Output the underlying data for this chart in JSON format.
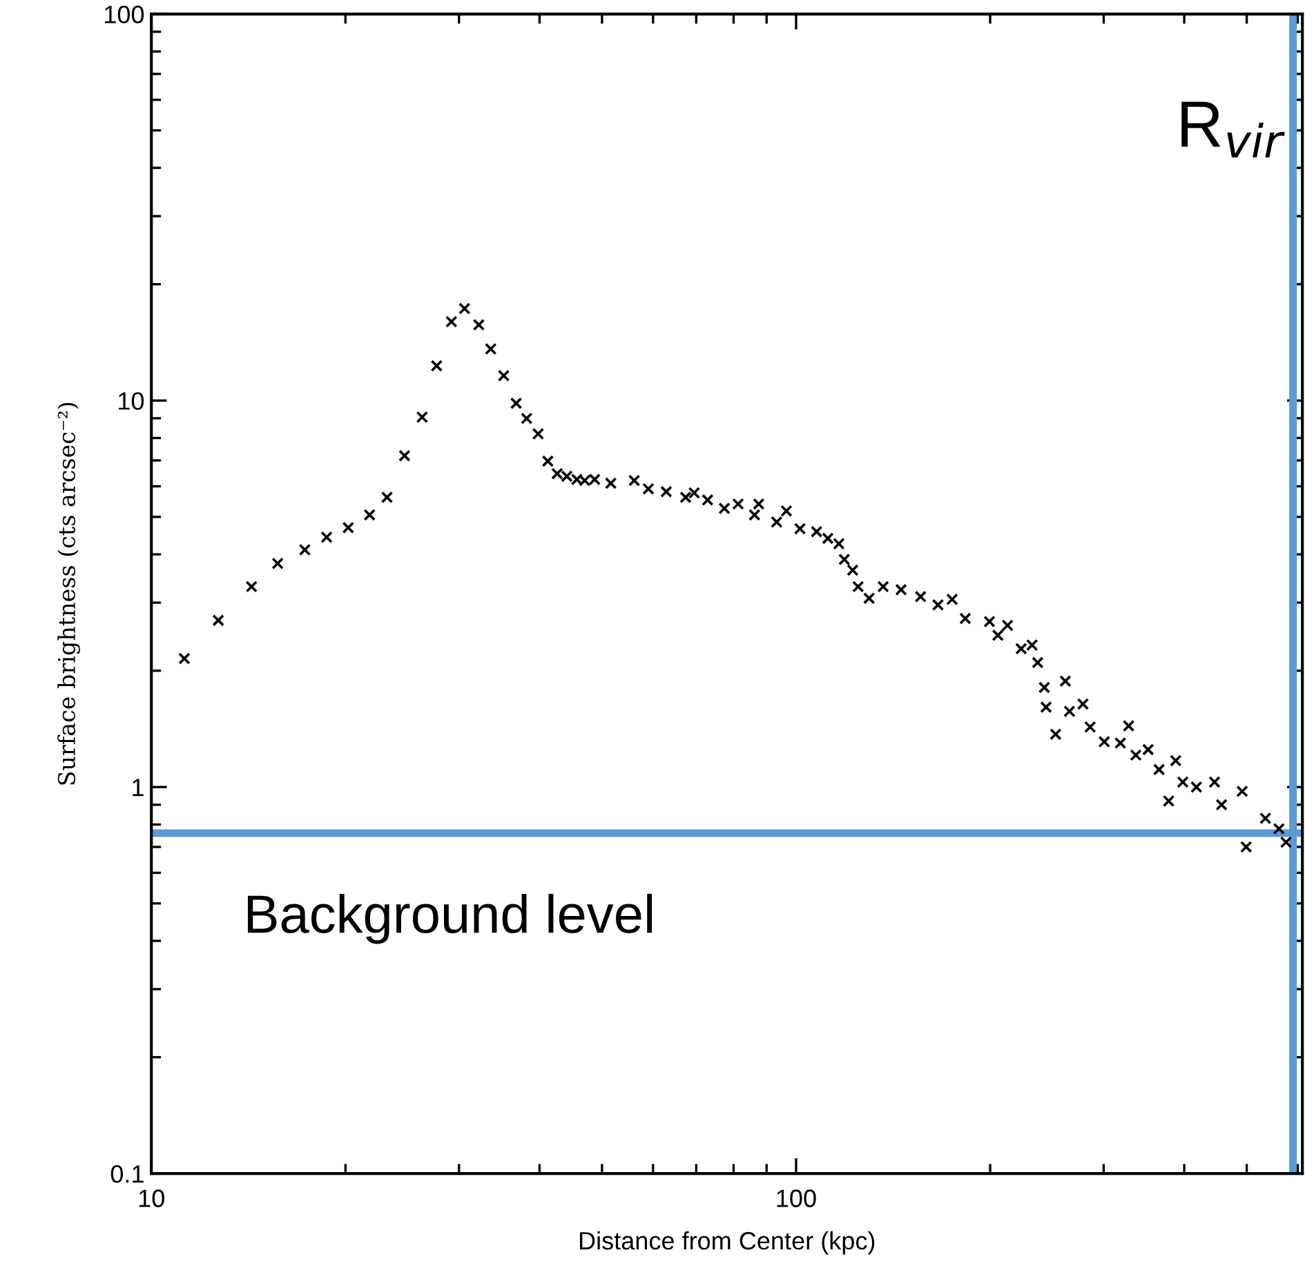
{
  "chart_data": {
    "type": "scatter",
    "xlabel": "Distance from Center (kpc)",
    "ylabel": "Surface brightness (cts arcsec⁻²)",
    "log": "xy",
    "xlim": [
      10,
      610
    ],
    "ylim": [
      0.1,
      100
    ],
    "xticks": [
      10,
      100
    ],
    "yticks": [
      0.1,
      1,
      10,
      100
    ],
    "marker": "cross",
    "grid": false,
    "legend": false,
    "series": [
      {
        "color": "#000000",
        "x": [
          11.25,
          12.7,
          14.3,
          15.7,
          17.3,
          18.7,
          20.2,
          21.8,
          23.2,
          24.7,
          26.3,
          27.7,
          29.2,
          30.6,
          32.2,
          33.6,
          35.2,
          36.8,
          38.2,
          39.8,
          41.2,
          42.6,
          44.1,
          45.7,
          47.0,
          48.7,
          51.6,
          56.1,
          59.0,
          62.9,
          67.4,
          69.5,
          72.9,
          77.4,
          81.3,
          86.2,
          87.5,
          93.3,
          96.6,
          101.4,
          107.6,
          112,
          116.5,
          118.8,
          122.4,
          124.8,
          129.8,
          136.5,
          145.5,
          156,
          166,
          174.6,
          183,
          199.5,
          205.6,
          212.8,
          223.4,
          232.3,
          237,
          242.7,
          244.2,
          252.7,
          261.6,
          265.5,
          278.6,
          285.8,
          300.6,
          318.4,
          328,
          336.5,
          351.6,
          365.6,
          378.4,
          388,
          398,
          417.8,
          445.7,
          457,
          492,
          499,
          534.6,
          561,
          575.4
        ],
        "values": [
          2.15,
          2.7,
          3.3,
          3.79,
          4.11,
          4.43,
          4.69,
          5.06,
          5.62,
          7.2,
          9.06,
          12.3,
          16.0,
          17.3,
          15.7,
          13.6,
          11.6,
          9.84,
          8.99,
          8.2,
          6.97,
          6.47,
          6.37,
          6.25,
          6.21,
          6.25,
          6.11,
          6.21,
          5.91,
          5.81,
          5.62,
          5.77,
          5.53,
          5.26,
          5.4,
          5.06,
          5.4,
          4.85,
          5.18,
          4.66,
          4.58,
          4.4,
          4.26,
          3.88,
          3.64,
          3.3,
          3.08,
          3.3,
          3.24,
          3.11,
          2.96,
          3.06,
          2.73,
          2.68,
          2.47,
          2.62,
          2.28,
          2.33,
          2.1,
          1.81,
          1.61,
          1.37,
          1.88,
          1.57,
          1.64,
          1.43,
          1.31,
          1.3,
          1.44,
          1.21,
          1.25,
          1.11,
          0.92,
          1.17,
          1.03,
          1.0,
          1.03,
          0.9,
          0.975,
          0.7,
          0.83,
          0.78,
          0.72
        ]
      }
    ],
    "ref_lines": [
      {
        "axis": "y",
        "value": 0.76,
        "label": "Background level",
        "color": "#5b9bd5"
      },
      {
        "axis": "x",
        "value": 590,
        "label": "R$_{vir}$",
        "color": "#5b9bd5"
      }
    ]
  }
}
